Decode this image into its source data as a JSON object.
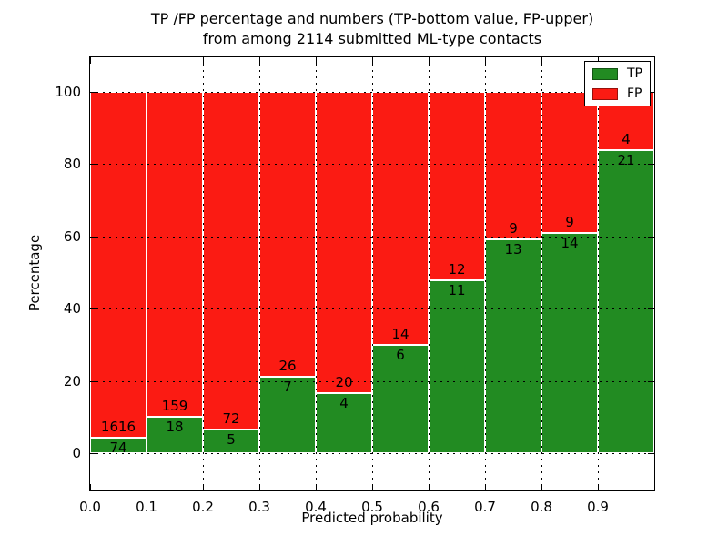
{
  "title": {
    "line1": "TP /FP percentage and numbers (TP-bottom value, FP-upper)",
    "line2": "from among 2114 submitted ML-type contacts"
  },
  "axes": {
    "xlabel": "Predicted probability",
    "ylabel": "Percentage",
    "xticks": [
      "0.0",
      "0.1",
      "0.2",
      "0.3",
      "0.4",
      "0.5",
      "0.6",
      "0.7",
      "0.8",
      "0.9"
    ],
    "yticks": [
      0,
      20,
      40,
      60,
      80,
      100
    ],
    "xlim": [
      0.0,
      1.0
    ],
    "ylim": [
      -10,
      110
    ],
    "grid": "dotted black"
  },
  "legend": {
    "position": "upper right",
    "items": [
      {
        "label": "TP",
        "color": "#228b22"
      },
      {
        "label": "FP",
        "color": "#fb1b13"
      }
    ]
  },
  "colors": {
    "tp": "#228b22",
    "fp": "#fb1b13",
    "bar_edge": "#ffffff",
    "background": "#ffffff",
    "text": "#000000"
  },
  "chart_data": {
    "type": "bar",
    "stacked": true,
    "normalized_to_percent": 100,
    "title": "TP /FP percentage and numbers (TP-bottom value, FP-upper) from among 2114 submitted ML-type contacts",
    "xlabel": "Predicted probability",
    "ylabel": "Percentage",
    "total_contacts": 2114,
    "bins": [
      "0.0-0.1",
      "0.1-0.2",
      "0.2-0.3",
      "0.3-0.4",
      "0.4-0.5",
      "0.5-0.6",
      "0.6-0.7",
      "0.7-0.8",
      "0.8-0.9",
      "0.9-1.0"
    ],
    "x_starts": [
      0.0,
      0.1,
      0.2,
      0.3,
      0.4,
      0.5,
      0.6,
      0.7,
      0.8,
      0.9
    ],
    "bin_width": 0.1,
    "series": [
      {
        "name": "TP",
        "color": "#228b22",
        "counts": [
          74,
          18,
          5,
          7,
          4,
          6,
          11,
          13,
          14,
          21
        ]
      },
      {
        "name": "FP",
        "color": "#fb1b13",
        "counts": [
          1616,
          159,
          72,
          26,
          20,
          14,
          12,
          9,
          9,
          4
        ]
      }
    ],
    "tp_percent": [
      4.4,
      10.2,
      6.5,
      21.2,
      16.7,
      30.0,
      47.8,
      59.1,
      60.9,
      84.0
    ],
    "fp_percent": [
      95.6,
      89.8,
      93.5,
      78.8,
      83.3,
      70.0,
      52.2,
      40.9,
      39.1,
      16.0
    ]
  }
}
